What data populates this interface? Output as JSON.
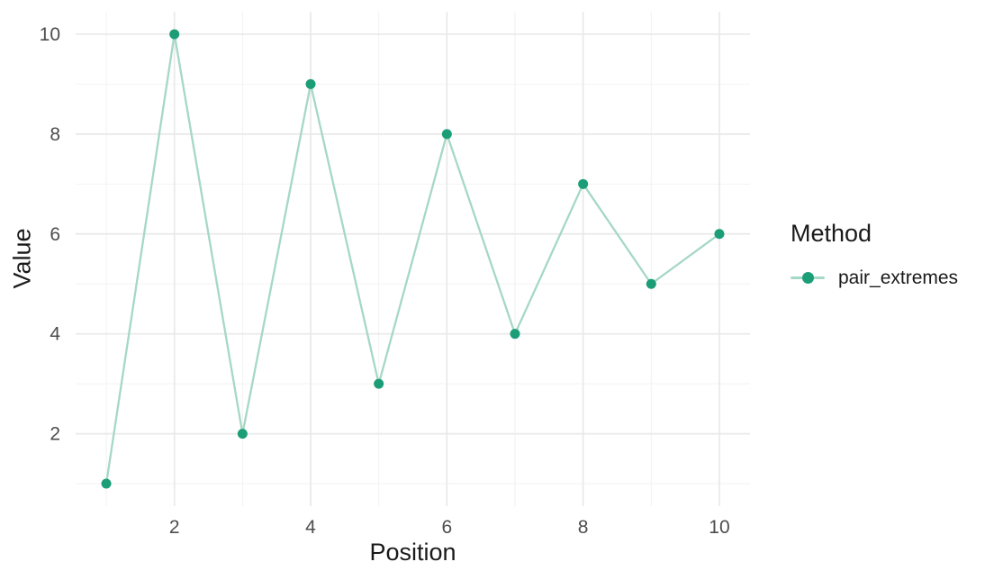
{
  "chart_data": {
    "type": "line",
    "title": "",
    "xlabel": "Position",
    "ylabel": "Value",
    "x": [
      1,
      2,
      3,
      4,
      5,
      6,
      7,
      8,
      9,
      10
    ],
    "series": [
      {
        "name": "pair_extremes",
        "values": [
          1,
          10,
          2,
          9,
          3,
          8,
          4,
          7,
          5,
          6
        ]
      }
    ],
    "xlim": [
      1,
      10
    ],
    "ylim": [
      1,
      10
    ],
    "x_ticks": [
      2,
      4,
      6,
      8,
      10
    ],
    "y_ticks": [
      2,
      4,
      6,
      8,
      10
    ],
    "x_minor_ticks": [
      1,
      3,
      5,
      7,
      9
    ],
    "y_minor_ticks": [
      1,
      3,
      5,
      7,
      9
    ],
    "grid": true,
    "legend": {
      "title": "Method",
      "position": "right",
      "entries": [
        {
          "label": "pair_extremes",
          "marker": "point-on-line"
        }
      ]
    },
    "colors": {
      "point": "#1b9e77",
      "line": "#a5d8c5",
      "grid_major": "#e9e9e9",
      "grid_minor": "#f2f2f2",
      "tick_text": "#4d4d4d",
      "title_text": "#1a1a1a",
      "background": "#ffffff"
    }
  }
}
